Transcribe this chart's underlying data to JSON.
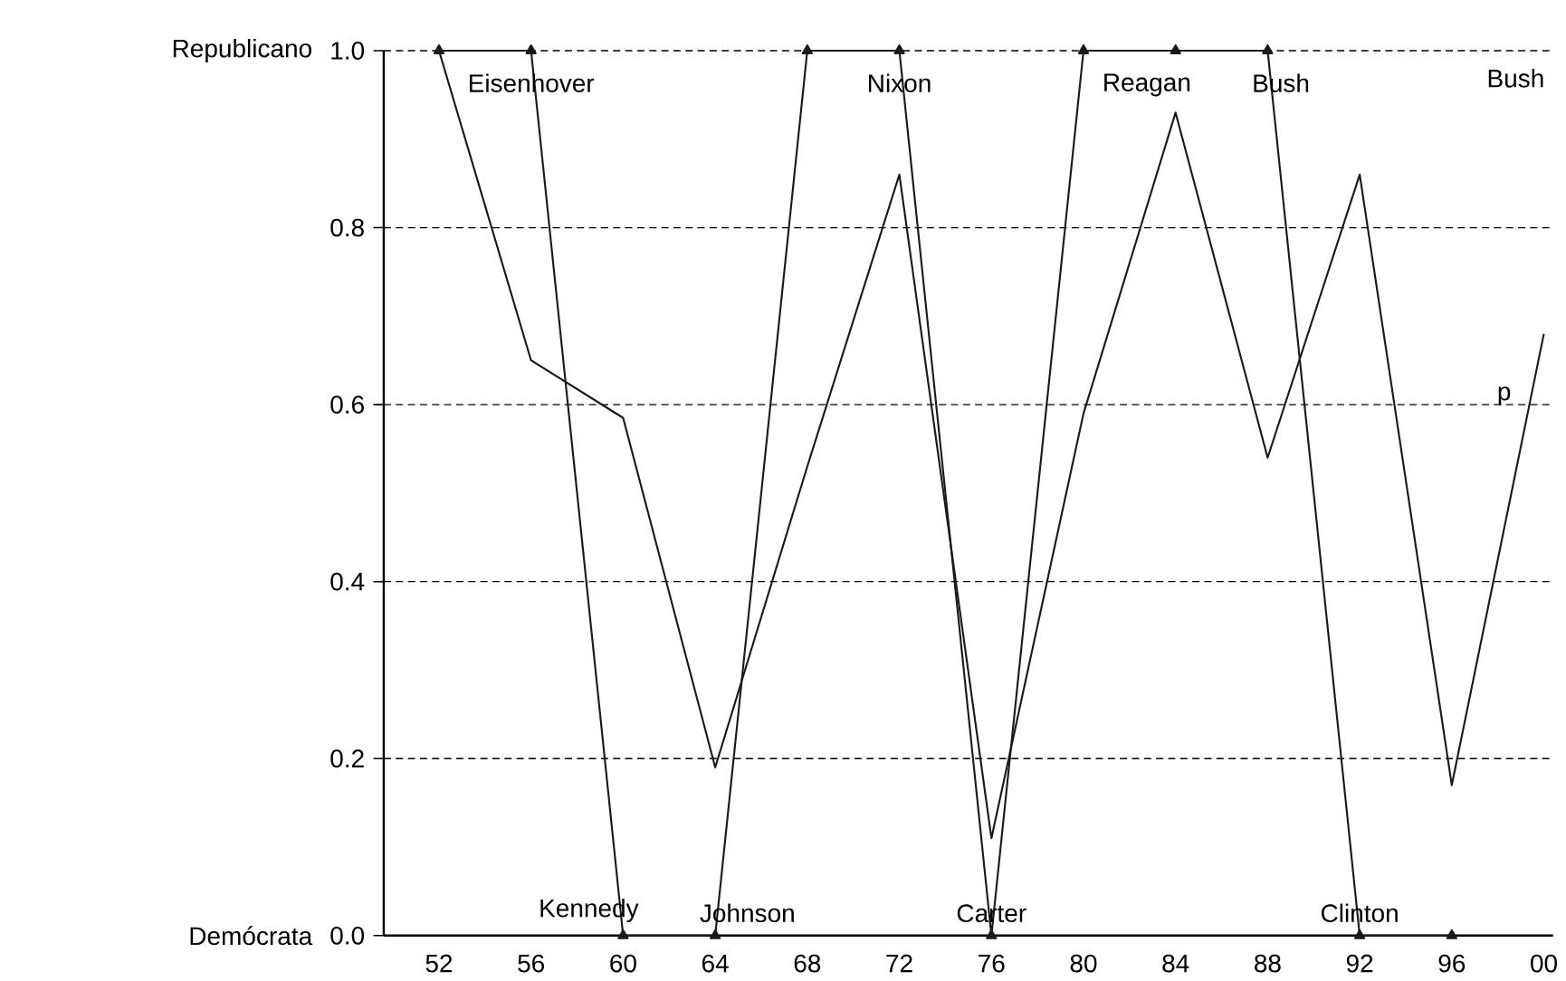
{
  "chart_data": {
    "type": "line",
    "categories": [
      "52",
      "56",
      "60",
      "64",
      "68",
      "72",
      "76",
      "80",
      "84",
      "88",
      "92",
      "96",
      "00"
    ],
    "series": [
      {
        "color": "#1a1a1a",
        "marker": "triangle",
        "values": [
          1,
          1,
          0,
          0,
          1,
          1,
          0,
          1,
          1,
          1,
          0,
          0,
          null
        ]
      },
      {
        "name": "p",
        "color": "#1a1a1a",
        "marker": "none",
        "values": [
          1.0,
          0.65,
          0.585,
          0.19,
          0.53,
          0.86,
          0.11,
          0.59,
          0.93,
          0.54,
          0.86,
          0.17,
          0.68
        ]
      }
    ],
    "ylim": [
      0,
      1
    ],
    "yticks": [
      {
        "value": 0,
        "label": "0.0"
      },
      0.2,
      0.4,
      0.6,
      0.8,
      {
        "value": 1,
        "label": "1.0"
      }
    ],
    "grid": "y",
    "line_style": "solid",
    "annotations": [
      "Republicano",
      "Demócrata",
      {
        "text": "Eisenhover",
        "x": "56",
        "y": 1
      },
      {
        "text": "Kennedy",
        "x": "60",
        "y": 0
      },
      {
        "text": "Johnson",
        "x": "64",
        "y": 0
      },
      {
        "text": "Nixon",
        "x": "72",
        "y": 1
      },
      {
        "text": "Carter",
        "x": "76",
        "y": 0
      },
      {
        "text": "Reagan",
        "x": "84",
        "y": 1
      },
      {
        "text": "Bush",
        "x": "88",
        "y": 1
      },
      {
        "text": "Clinton",
        "x": "92",
        "y": 0
      },
      "Bush"
    ]
  }
}
